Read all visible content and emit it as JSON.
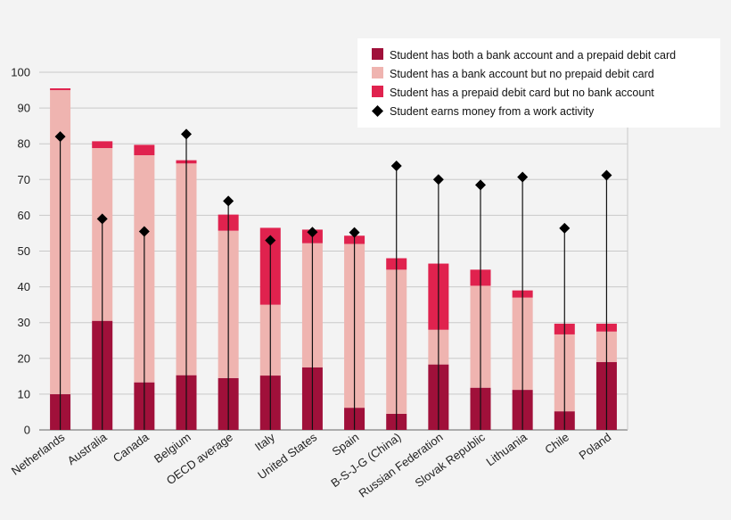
{
  "chart_data": {
    "type": "bar",
    "stacked": true,
    "categories": [
      "Netherlands",
      "Australia",
      "Canada",
      "Belgium",
      "OECD average",
      "Italy",
      "United States",
      "Spain",
      "B-S-J-G (China)",
      "Russian Federation",
      "Slovak Republic",
      "Lithuania",
      "Chile",
      "Poland"
    ],
    "series": [
      {
        "name": "Student has both a bank account and a prepaid debit card",
        "color": "#a0103a",
        "values": [
          10,
          30.5,
          13.3,
          15.3,
          14.5,
          15.2,
          17.5,
          6.2,
          4.5,
          18.3,
          11.8,
          11.2,
          5.2,
          19
        ]
      },
      {
        "name": "Student has a bank account but no prepaid debit card",
        "color": "#efb4b0",
        "values": [
          85,
          48.3,
          63.5,
          59.2,
          41.2,
          19.8,
          34.7,
          45.8,
          40.3,
          9.7,
          28.5,
          25.8,
          21.5,
          8.5
        ]
      },
      {
        "name": "Student has a prepaid debit card but no bank account",
        "color": "#e0224e",
        "values": [
          0.5,
          1.9,
          2.9,
          0.9,
          4.5,
          21.5,
          3.8,
          2.3,
          3.2,
          18.5,
          4.5,
          2,
          3,
          2.2
        ]
      }
    ],
    "markers": {
      "name": "Student earns money from a work activity",
      "values": [
        82,
        59,
        55.5,
        82.7,
        64,
        53,
        55.3,
        55.2,
        73.8,
        70,
        68.5,
        70.7,
        56.4,
        71.2
      ]
    },
    "ylim": [
      0,
      100
    ],
    "yticks": [
      0,
      10,
      20,
      30,
      40,
      50,
      60,
      70,
      80,
      90,
      100
    ],
    "grid": true,
    "legend_position": "top-right",
    "title": "",
    "xlabel": "",
    "ylabel": ""
  }
}
